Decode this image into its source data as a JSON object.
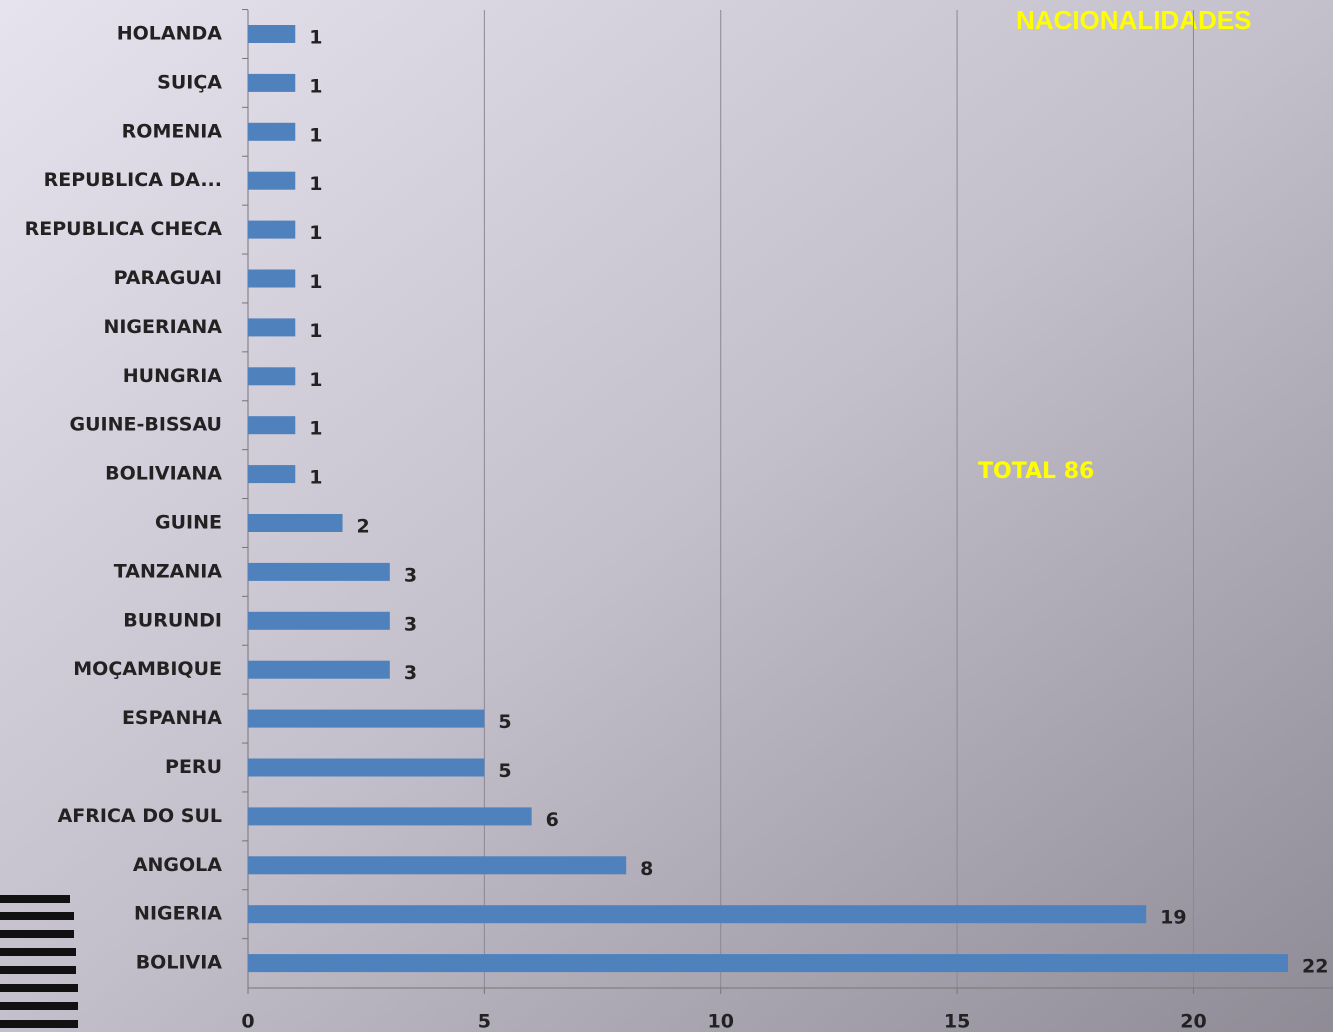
{
  "chart_data": {
    "type": "barh",
    "title": "NACIONALIDADES",
    "annotation": "TOTAL 86",
    "categories": [
      "HOLANDA",
      "SUIÇA",
      "ROMENIA",
      "REPUBLICA DA...",
      "REPUBLICA CHECA",
      "PARAGUAI",
      "NIGERIANA",
      "HUNGRIA",
      "GUINE-BISSAU",
      "BOLIVIANA",
      "GUINE",
      "TANZANIA",
      "BURUNDI",
      "MOÇAMBIQUE",
      "ESPANHA",
      "PERU",
      "AFRICA DO SUL",
      "ANGOLA",
      "NIGERIA",
      "BOLIVIA"
    ],
    "values": [
      1,
      1,
      1,
      1,
      1,
      1,
      1,
      1,
      1,
      1,
      2,
      3,
      3,
      3,
      5,
      5,
      6,
      8,
      19,
      22
    ],
    "color": "#4f81bd",
    "xlim": [
      0,
      22
    ],
    "xticks": [
      0,
      5,
      10,
      15,
      20
    ],
    "grid": true
  }
}
